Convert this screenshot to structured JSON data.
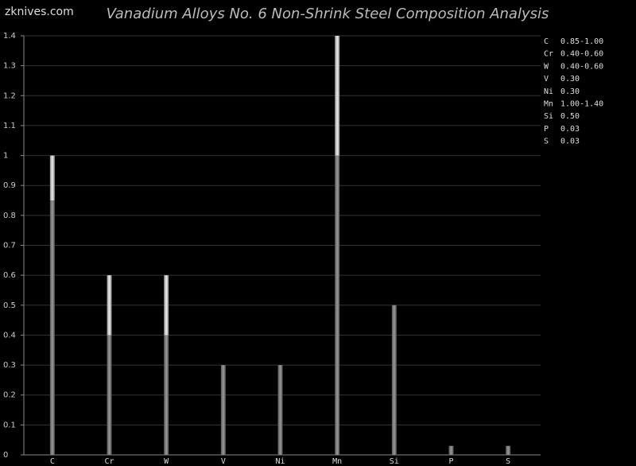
{
  "watermark": "zknives.com",
  "chart_data": {
    "type": "range-bar",
    "title": "Vanadium Alloys No. 6 Non-Shrink Steel Composition Analysis",
    "categories": [
      "C",
      "Cr",
      "W",
      "V",
      "Ni",
      "Mn",
      "Si",
      "P",
      "S"
    ],
    "min": [
      0.85,
      0.4,
      0.4,
      null,
      null,
      1.0,
      null,
      null,
      null
    ],
    "max": [
      1.0,
      0.6,
      0.6,
      0.3,
      0.3,
      1.4,
      0.5,
      0.03,
      0.03
    ],
    "legend": [
      {
        "symbol": "C",
        "text": "0.85-1.00"
      },
      {
        "symbol": "Cr",
        "text": "0.40-0.60"
      },
      {
        "symbol": "W",
        "text": "0.40-0.60"
      },
      {
        "symbol": "V",
        "text": "0.30"
      },
      {
        "symbol": "Ni",
        "text": "0.30"
      },
      {
        "symbol": "Mn",
        "text": "1.00-1.40"
      },
      {
        "symbol": "Si",
        "text": "0.50"
      },
      {
        "symbol": "P",
        "text": "0.03"
      },
      {
        "symbol": "S",
        "text": "0.03"
      }
    ],
    "ylim": [
      0,
      1.4
    ],
    "yticks": [
      0,
      0.1,
      0.2,
      0.3,
      0.4,
      0.5,
      0.6,
      0.7,
      0.8,
      0.9,
      1,
      1.1,
      1.2,
      1.3,
      1.4
    ],
    "grid": true
  }
}
